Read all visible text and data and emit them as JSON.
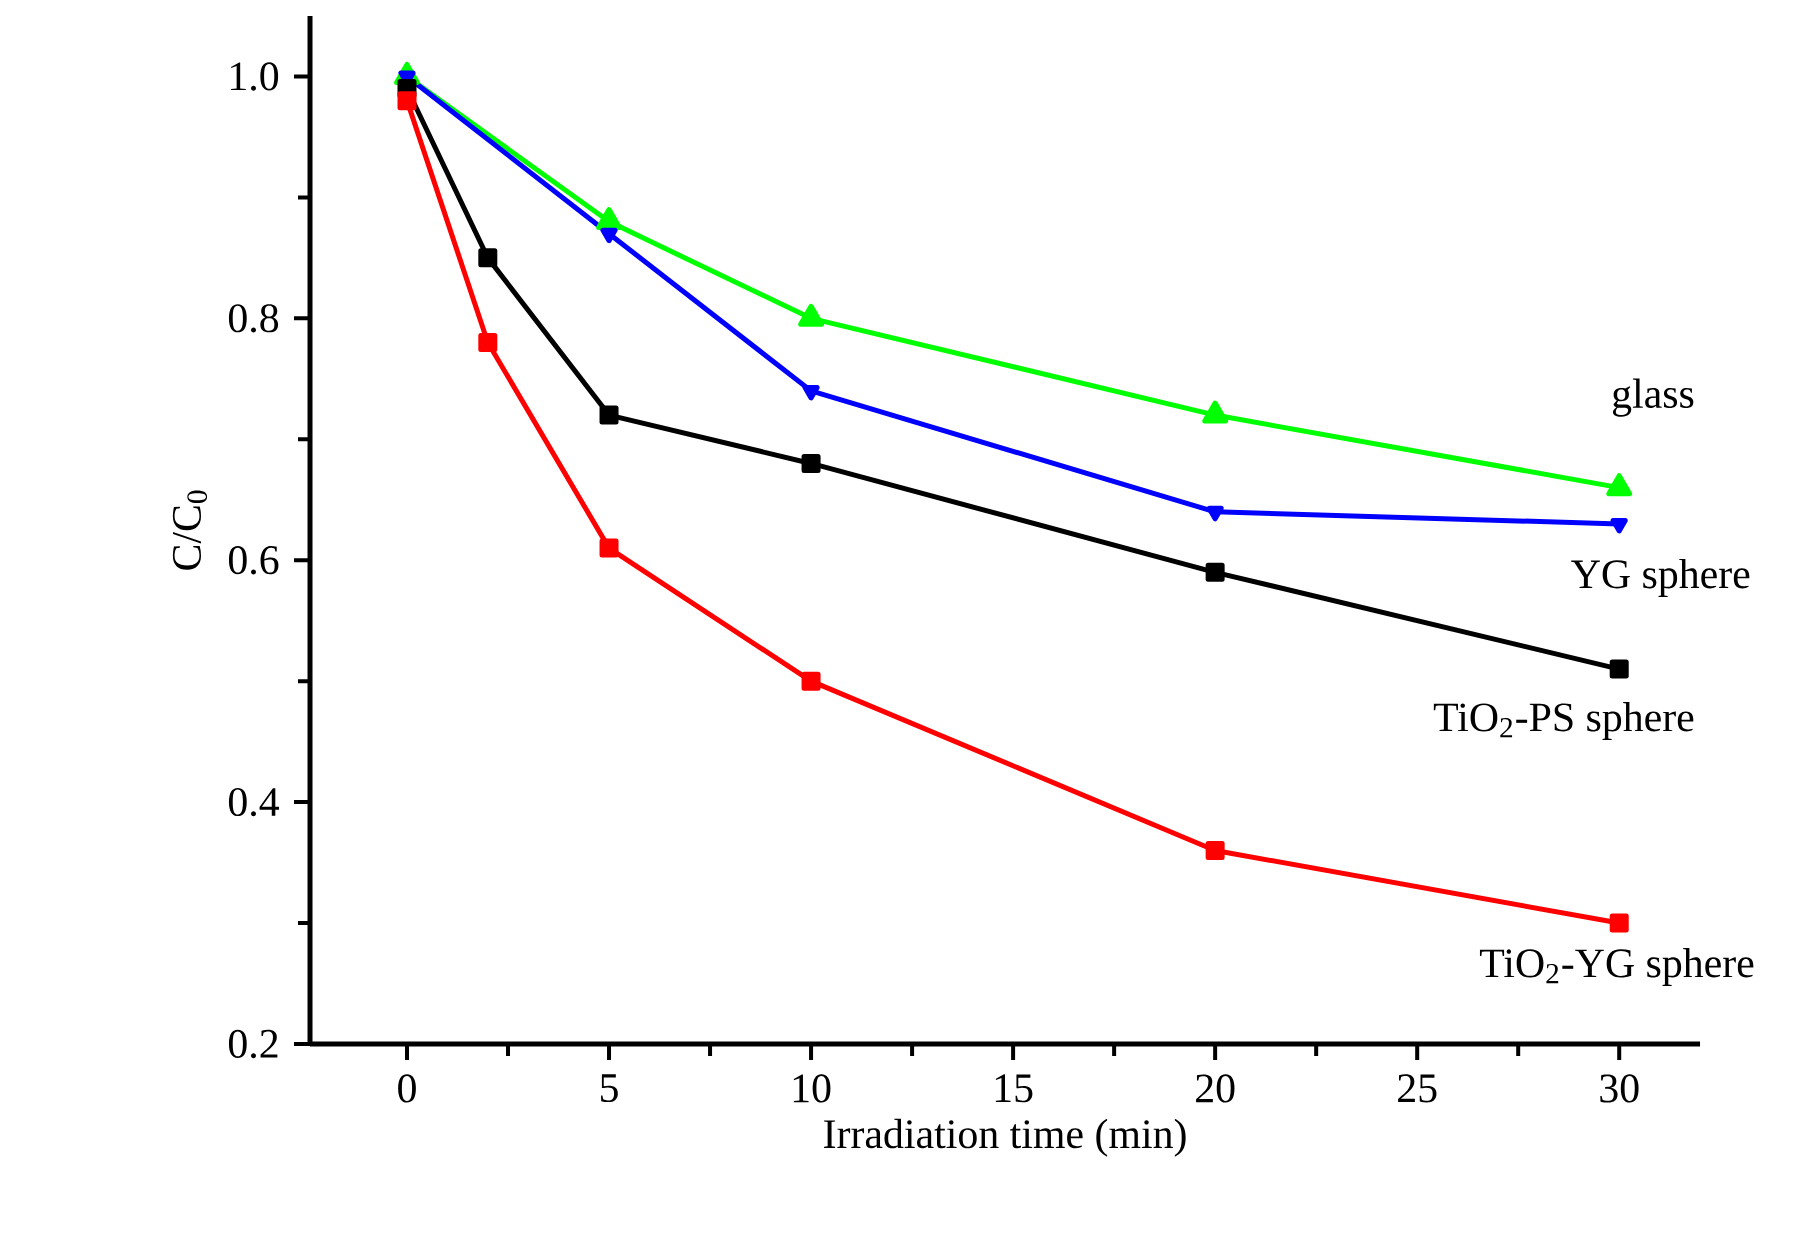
{
  "chart_data": {
    "type": "line",
    "xlabel": "Irradiation time (min)",
    "ylabel": "C/C$_{0}$",
    "xlim": [
      -2.4,
      32
    ],
    "ylim": [
      0.2,
      1.05
    ],
    "xticks": [
      0,
      5,
      10,
      15,
      20,
      25,
      30
    ],
    "yticks": [
      {
        "value": 0.2,
        "label": "0.2"
      },
      {
        "value": 0.4,
        "label": "0.4"
      },
      {
        "value": 0.6,
        "label": "0.6"
      },
      {
        "value": 0.8,
        "label": "0.8"
      },
      {
        "value": 1.0,
        "label": "1.0"
      }
    ],
    "grid": false,
    "legend": false,
    "series": [
      {
        "name": "glass",
        "color": "#00ff00",
        "marker": "triangle",
        "x": [
          0,
          5,
          10,
          20,
          30
        ],
        "values": [
          1.0,
          0.88,
          0.8,
          0.72,
          0.66
        ]
      },
      {
        "name": "YG sphere",
        "color": "#0000ff",
        "marker": "triangle down",
        "x": [
          0,
          5,
          10,
          20,
          30
        ],
        "values": [
          1.0,
          0.87,
          0.74,
          0.64,
          0.63
        ]
      },
      {
        "name": "TiO$_{2}$-PS sphere",
        "color": "#000000",
        "marker": "square",
        "x": [
          0,
          2,
          5,
          10,
          20,
          30
        ],
        "values": [
          0.99,
          0.85,
          0.72,
          0.68,
          0.59,
          0.51
        ]
      },
      {
        "name": "TiO$_{2}$-YG sphere",
        "color": "#ff0000",
        "marker": "square",
        "x": [
          0,
          2,
          5,
          10,
          20,
          30
        ],
        "values": [
          0.98,
          0.78,
          0.61,
          0.5,
          0.36,
          0.3
        ]
      }
    ]
  }
}
